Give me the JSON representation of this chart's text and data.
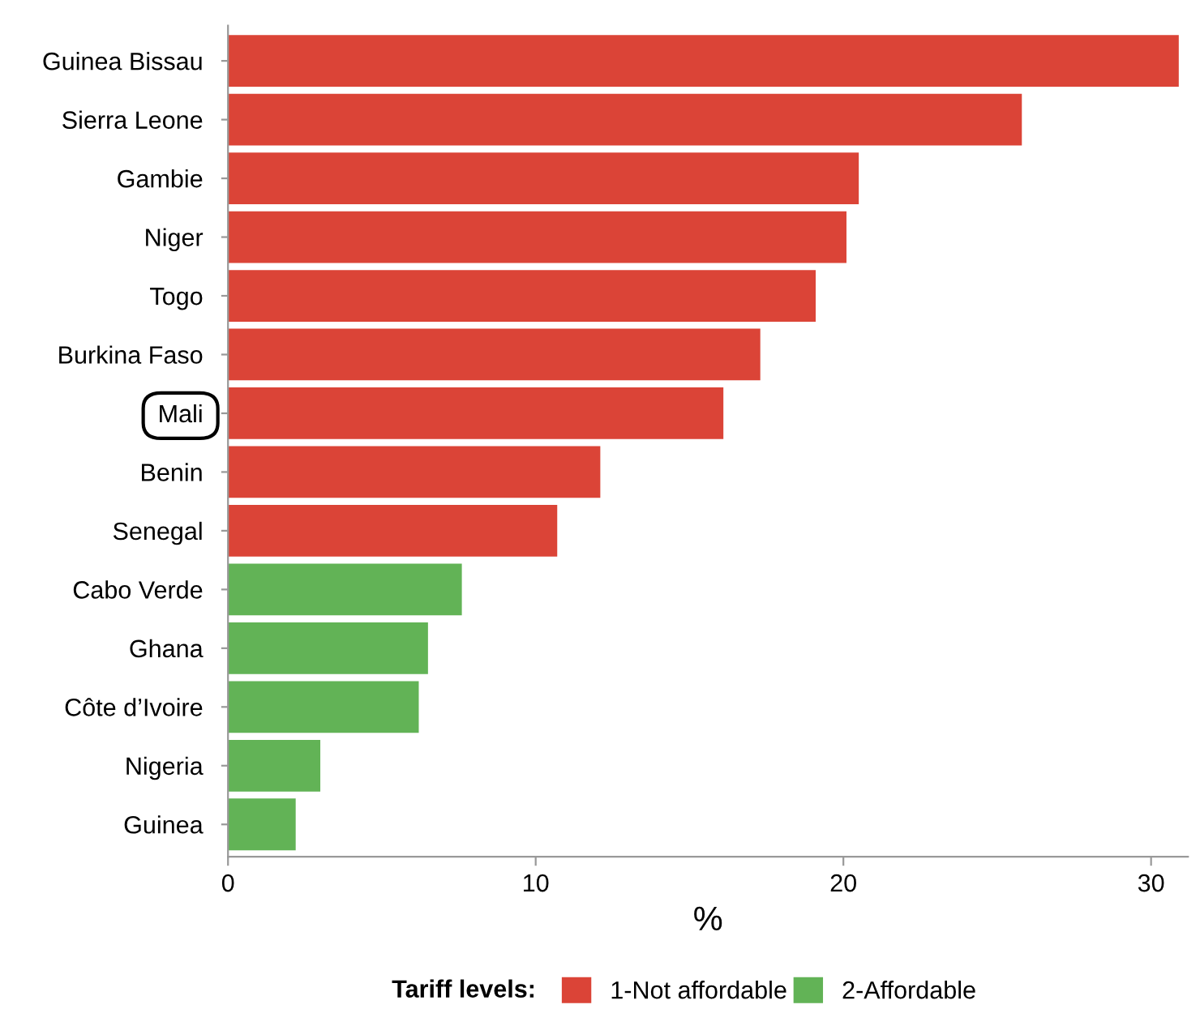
{
  "chart_data": {
    "type": "bar",
    "orientation": "horizontal",
    "xlabel": "%",
    "legend_title": "Tariff levels:",
    "legend": "bottom",
    "categories": [
      "Guinea Bissau",
      "Sierra Leone",
      "Gambie",
      "Niger",
      "Togo",
      "Burkina Faso",
      "Mali",
      "Benin",
      "Senegal",
      "Cabo Verde",
      "Ghana",
      "Côte d’Ivoire",
      "Nigeria",
      "Guinea"
    ],
    "series": [
      {
        "name": "1-Not affordable",
        "color": "#db4437",
        "values": [
          30.9,
          25.8,
          20.5,
          20.1,
          19.1,
          17.3,
          16.1,
          12.1,
          10.7,
          null,
          null,
          null,
          null,
          null
        ]
      },
      {
        "name": "2-Affordable",
        "color": "#62b356",
        "values": [
          null,
          null,
          null,
          null,
          null,
          null,
          null,
          null,
          null,
          7.6,
          6.5,
          6.2,
          3.0,
          2.2
        ]
      }
    ],
    "xlim": [
      0,
      31.2
    ],
    "xticks": [
      0,
      10,
      20,
      30
    ],
    "grid": false
  }
}
